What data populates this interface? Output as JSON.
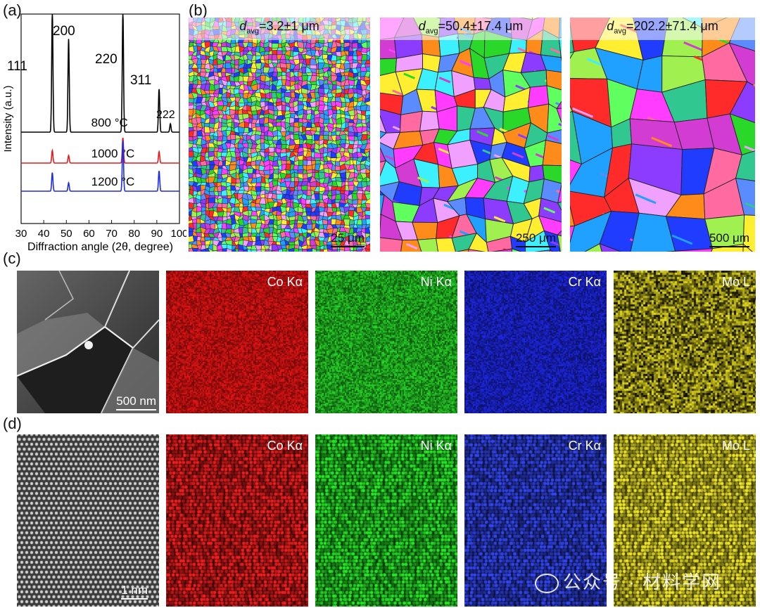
{
  "panels": {
    "a": "(a)",
    "b": "(b)",
    "c": "(c)",
    "d": "(d)"
  },
  "chart_data": {
    "type": "line",
    "xlabel": "Diffraction angle (2θ, degree)",
    "ylabel": "Intensity (a.u.)",
    "xlim": [
      30,
      100
    ],
    "xticks": [
      "30",
      "40",
      "50",
      "60",
      "70",
      "80",
      "90",
      "100"
    ],
    "peak_labels": [
      "111",
      "200",
      "220",
      "311",
      "222"
    ],
    "peak_positions": [
      43.8,
      51.0,
      75.0,
      91.0,
      96.0
    ],
    "series": [
      {
        "name": "800 °C",
        "color": "#000000",
        "peaks": [
          [
            43.8,
            1.0
          ],
          [
            51.0,
            0.78
          ],
          [
            75.0,
            1.0
          ],
          [
            91.0,
            0.36
          ],
          [
            96.0,
            0.07
          ]
        ]
      },
      {
        "name": "1000 °C",
        "color": "#e41a1c",
        "peaks": [
          [
            43.8,
            0.2
          ],
          [
            51.0,
            0.12
          ],
          [
            75.0,
            0.4
          ],
          [
            91.0,
            0.18
          ]
        ]
      },
      {
        "name": "1200 °C",
        "color": "#1f2de0",
        "peaks": [
          [
            43.8,
            0.22
          ],
          [
            51.0,
            0.1
          ],
          [
            75.0,
            0.6
          ],
          [
            91.0,
            0.24
          ]
        ]
      }
    ]
  },
  "ebsd": [
    {
      "davg_prefix": "d",
      "davg_sub": "avg",
      "davg_value": "=3.2±1 μm",
      "scale": "25 μm"
    },
    {
      "davg_prefix": "d",
      "davg_sub": "avg",
      "davg_value": "=50.4±17.4 μm",
      "scale": "250 μm"
    },
    {
      "davg_prefix": "d",
      "davg_sub": "avg",
      "davg_value": "=202.2±71.4 μm",
      "scale": "500 μm"
    }
  ],
  "rowc": {
    "scale": "500 nm",
    "elements": [
      "Co Kα",
      "Ni Kα",
      "Cr Kα",
      "Mo L"
    ]
  },
  "rowd": {
    "scale": "1 nm",
    "elements": [
      "Co Kα",
      "Ni Kα",
      "Cr Kα",
      "Mo L"
    ]
  },
  "colors": {
    "co": "#d01010",
    "ni": "#18b818",
    "cr": "#1a2ae0",
    "mo": "#c8c010"
  },
  "watermark": "公众号 · 材料学网"
}
